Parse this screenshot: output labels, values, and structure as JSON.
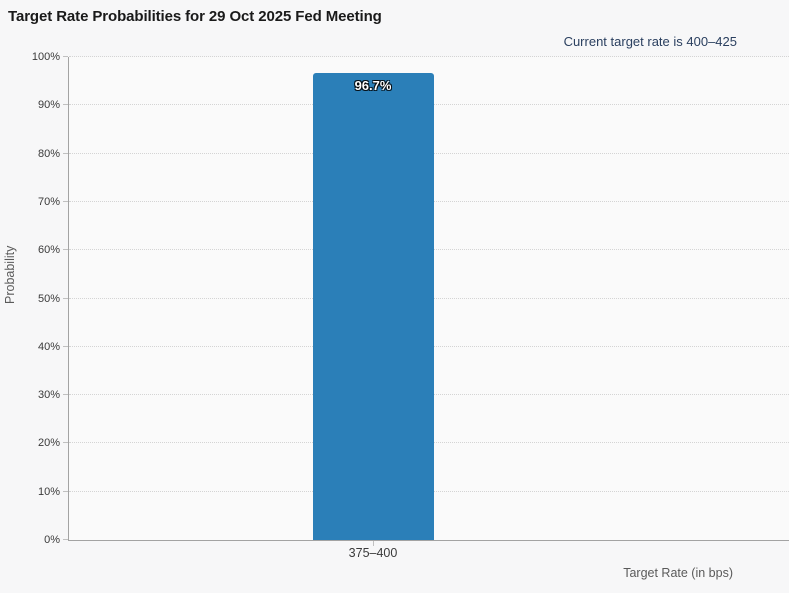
{
  "header": {
    "title": "Target Rate Probabilities for 29 Oct 2025 Fed Meeting",
    "annotation": "Current target rate is 400–425"
  },
  "chart_data": {
    "type": "bar",
    "title": "Target Rate Probabilities for 29 Oct 2025 Fed Meeting",
    "annotation": "Current target rate is 400–425",
    "categories": [
      "375–400"
    ],
    "values": [
      96.7
    ],
    "bar_labels": [
      "96.7%"
    ],
    "xlabel": "Target Rate (in bps)",
    "ylabel": "Probability",
    "ylim": [
      0,
      100
    ],
    "y_ticks": [
      "0%",
      "10%",
      "20%",
      "30%",
      "40%",
      "50%",
      "60%",
      "70%",
      "80%",
      "90%",
      "100%"
    ],
    "grid": "horizontal-dotted",
    "legend": "none",
    "colors": {
      "bar": "#2b7fb8",
      "bar_label_text": "#ffffff",
      "annotation_text": "#2a3f5f",
      "background": "#f7f7f8",
      "plot_background": "#fafafa",
      "gridline": "#d4d4d4",
      "axis_line": "#a3a3a3"
    }
  }
}
